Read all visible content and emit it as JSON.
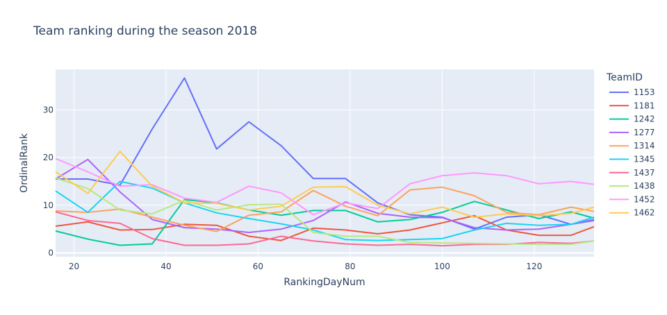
{
  "chart_data": {
    "type": "line",
    "title": "Team ranking during the season 2018",
    "xlabel": "RankingDayNum",
    "ylabel": "OrdinalRank",
    "xlim": [
      16,
      133
    ],
    "ylim": [
      -0.8,
      38.5
    ],
    "xticks": [
      20,
      40,
      60,
      80,
      100,
      120
    ],
    "yticks": [
      0,
      10,
      20,
      30
    ],
    "grid": true,
    "legend_title": "TeamID",
    "legend_position": "right",
    "x": [
      16,
      23,
      30,
      37,
      44,
      51,
      58,
      65,
      72,
      79,
      86,
      93,
      100,
      107,
      114,
      121,
      128,
      133
    ],
    "series": [
      {
        "name": "1153",
        "color": "#636efa",
        "values": [
          15.5,
          15.5,
          14.2,
          26,
          36.7,
          21.8,
          27.5,
          22.5,
          15.6,
          15.6,
          10.5,
          8,
          7.5,
          5,
          7.5,
          8,
          6,
          6.8
        ]
      },
      {
        "name": "1181",
        "color": "#ef553b",
        "values": [
          5.6,
          6.5,
          4.8,
          4.9,
          6,
          5.8,
          3.5,
          2.6,
          5.2,
          4.8,
          4,
          4.8,
          6.3,
          7.8,
          4.8,
          3.7,
          3.7,
          5.5
        ]
      },
      {
        "name": "1242",
        "color": "#00cc96",
        "values": [
          4.6,
          2.9,
          1.6,
          1.9,
          11.2,
          10.5,
          9,
          7.9,
          8.9,
          8.9,
          6.5,
          7,
          8.5,
          10.8,
          9,
          7.2,
          8.6,
          7.3
        ]
      },
      {
        "name": "1277",
        "color": "#ab63fa",
        "values": [
          15.5,
          19.6,
          12.8,
          7,
          5.3,
          5,
          4.3,
          5,
          6.8,
          10.7,
          8.3,
          7.5,
          7.4,
          5.3,
          4.8,
          5,
          6,
          7
        ]
      },
      {
        "name": "1314",
        "color": "#ffa15a",
        "values": [
          8.8,
          8.5,
          9.2,
          7.5,
          5.8,
          4.5,
          7.9,
          8.6,
          13.1,
          9.8,
          7.8,
          13.2,
          13.8,
          12,
          8.5,
          8,
          9.6,
          8.7
        ]
      },
      {
        "name": "1345",
        "color": "#19d3f3",
        "values": [
          13,
          8.5,
          15,
          13.6,
          10.5,
          8.4,
          7.2,
          6.1,
          4.8,
          2.8,
          2.6,
          2.8,
          3,
          4.8,
          6.2,
          5.8,
          6,
          7.5
        ]
      },
      {
        "name": "1437",
        "color": "#ff6692",
        "values": [
          8.6,
          6.8,
          6.2,
          3,
          1.6,
          1.6,
          1.9,
          3.5,
          2.5,
          1.9,
          1.6,
          1.8,
          1.5,
          1.8,
          1.8,
          2.2,
          2,
          2.5
        ]
      },
      {
        "name": "1438",
        "color": "#b6e880",
        "values": [
          15.7,
          13.5,
          9,
          8.2,
          11,
          9,
          10.1,
          10.2,
          4.3,
          3.5,
          3.5,
          2.2,
          2.1,
          2,
          1.9,
          1.8,
          1.8,
          2.5
        ]
      },
      {
        "name": "1452",
        "color": "#ff97ff",
        "values": [
          19.8,
          17,
          14,
          14.3,
          11.5,
          10.6,
          14,
          12.6,
          8,
          10.5,
          9.3,
          14.5,
          16.2,
          16.8,
          16.2,
          14.5,
          15,
          14.4
        ]
      },
      {
        "name": "1462",
        "color": "#fecb52",
        "values": [
          17,
          12.5,
          21.3,
          14,
          10.5,
          10.4,
          9,
          9.8,
          13.8,
          13.9,
          10,
          8.2,
          9.6,
          7.5,
          8.2,
          7.8,
          8.3,
          9.6
        ]
      }
    ]
  }
}
